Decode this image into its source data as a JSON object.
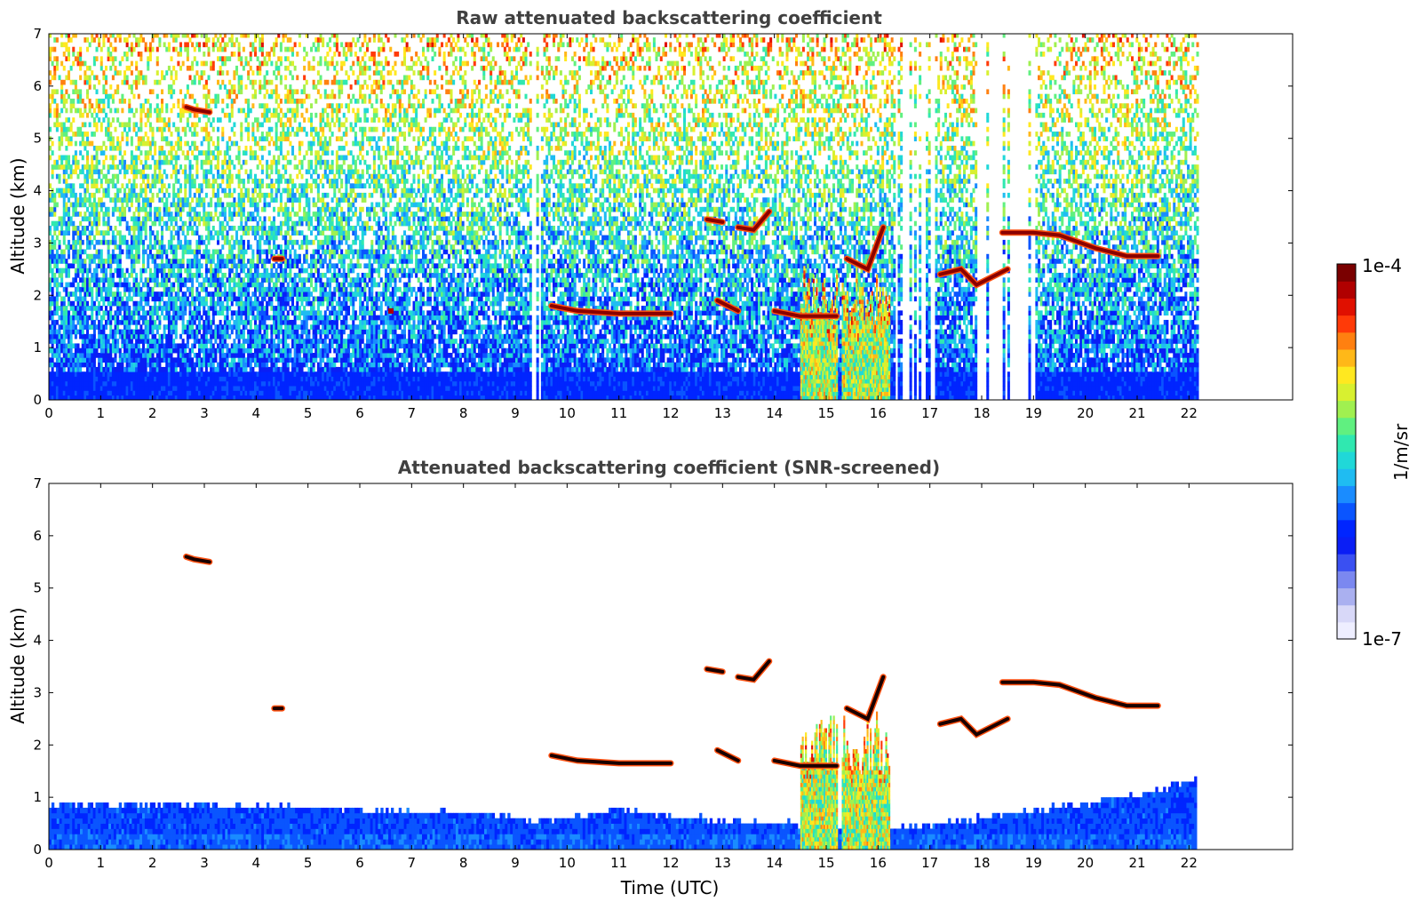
{
  "chart_data": [
    {
      "type": "heatmap",
      "title": "Raw attenuated backscattering coefficient",
      "xlabel": "",
      "ylabel": "Altitude (km)",
      "xlim": [
        0,
        24
      ],
      "ylim": [
        0,
        7
      ],
      "xticks": [
        "0",
        "1",
        "2",
        "3",
        "4",
        "5",
        "6",
        "7",
        "8",
        "9",
        "10",
        "11",
        "12",
        "13",
        "14",
        "15",
        "16",
        "17",
        "18",
        "19",
        "20",
        "21",
        "22"
      ],
      "yticks": [
        "0",
        "1",
        "2",
        "3",
        "4",
        "5",
        "6",
        "7"
      ],
      "data_end_hour": 22.15,
      "grid": false,
      "screened": false,
      "gaps": [
        [
          4.78,
          4.85
        ],
        [
          9.3,
          9.45
        ],
        [
          10.72,
          10.78
        ],
        [
          16.3,
          17.1
        ],
        [
          17.9,
          19.0
        ]
      ],
      "layers": [
        {
          "name": "",
          "points": [
            [
              2.65,
              5.6
            ],
            [
              2.8,
              5.55
            ],
            [
              3.1,
              5.5
            ]
          ]
        },
        {
          "name": "",
          "points": [
            [
              4.35,
              2.7
            ],
            [
              4.5,
              2.7
            ]
          ]
        },
        {
          "name": "",
          "points": [
            [
              6.6,
              1.7
            ]
          ]
        },
        {
          "name": "",
          "points": [
            [
              9.7,
              1.8
            ],
            [
              10.2,
              1.7
            ],
            [
              11.0,
              1.65
            ],
            [
              12.0,
              1.65
            ]
          ]
        },
        {
          "name": "",
          "points": [
            [
              12.7,
              3.45
            ],
            [
              13.0,
              3.4
            ]
          ]
        },
        {
          "name": "",
          "points": [
            [
              13.3,
              3.3
            ],
            [
              13.6,
              3.25
            ],
            [
              13.9,
              3.6
            ]
          ]
        },
        {
          "name": "",
          "points": [
            [
              12.9,
              1.9
            ],
            [
              13.3,
              1.7
            ]
          ]
        },
        {
          "name": "",
          "points": [
            [
              14.0,
              1.7
            ],
            [
              14.5,
              1.6
            ],
            [
              15.2,
              1.6
            ]
          ]
        },
        {
          "name": "",
          "points": [
            [
              15.4,
              2.7
            ],
            [
              15.8,
              2.5
            ],
            [
              16.1,
              3.3
            ]
          ]
        },
        {
          "name": "",
          "points": [
            [
              17.2,
              2.4
            ],
            [
              17.6,
              2.5
            ],
            [
              17.9,
              2.2
            ],
            [
              18.5,
              2.5
            ]
          ]
        },
        {
          "name": "",
          "points": [
            [
              18.4,
              3.2
            ],
            [
              19.0,
              3.2
            ],
            [
              19.5,
              3.15
            ],
            [
              20.2,
              2.9
            ],
            [
              20.8,
              2.75
            ],
            [
              21.4,
              2.75
            ]
          ]
        }
      ],
      "convective_cells": [
        [
          14.5,
          15.2
        ],
        [
          15.3,
          16.2
        ]
      ]
    },
    {
      "type": "heatmap",
      "title": "Attenuated backscattering coefficient (SNR-screened)",
      "xlabel": "Time (UTC)",
      "ylabel": "Altitude (km)",
      "xlim": [
        0,
        24
      ],
      "ylim": [
        0,
        7
      ],
      "xticks": [
        "0",
        "1",
        "2",
        "3",
        "4",
        "5",
        "6",
        "7",
        "8",
        "9",
        "10",
        "11",
        "12",
        "13",
        "14",
        "15",
        "16",
        "17",
        "18",
        "19",
        "20",
        "21",
        "22"
      ],
      "yticks": [
        "0",
        "1",
        "2",
        "3",
        "4",
        "5",
        "6",
        "7"
      ],
      "data_end_hour": 22.15,
      "grid": false,
      "screened": true,
      "boundary_layer_top": [
        [
          0,
          0.8
        ],
        [
          3,
          0.8
        ],
        [
          5,
          0.75
        ],
        [
          8,
          0.65
        ],
        [
          9.5,
          0.5
        ],
        [
          11,
          0.7
        ],
        [
          13,
          0.5
        ],
        [
          14.2,
          0.45
        ],
        [
          16,
          0.3
        ],
        [
          19,
          0.7
        ],
        [
          21,
          1.0
        ],
        [
          22.15,
          1.3
        ]
      ],
      "layers": [
        {
          "name": "",
          "points": [
            [
              2.65,
              5.6
            ],
            [
              2.8,
              5.55
            ],
            [
              3.1,
              5.5
            ]
          ]
        },
        {
          "name": "",
          "points": [
            [
              4.35,
              2.7
            ],
            [
              4.5,
              2.7
            ]
          ]
        },
        {
          "name": "",
          "points": [
            [
              9.7,
              1.8
            ],
            [
              10.2,
              1.7
            ],
            [
              11.0,
              1.65
            ],
            [
              12.0,
              1.65
            ]
          ]
        },
        {
          "name": "",
          "points": [
            [
              12.7,
              3.45
            ],
            [
              13.0,
              3.4
            ]
          ]
        },
        {
          "name": "",
          "points": [
            [
              13.3,
              3.3
            ],
            [
              13.6,
              3.25
            ],
            [
              13.9,
              3.6
            ]
          ]
        },
        {
          "name": "",
          "points": [
            [
              12.9,
              1.9
            ],
            [
              13.3,
              1.7
            ]
          ]
        },
        {
          "name": "",
          "points": [
            [
              14.0,
              1.7
            ],
            [
              14.5,
              1.6
            ],
            [
              15.2,
              1.6
            ]
          ]
        },
        {
          "name": "",
          "points": [
            [
              15.4,
              2.7
            ],
            [
              15.8,
              2.5
            ],
            [
              16.1,
              3.3
            ]
          ]
        },
        {
          "name": "",
          "points": [
            [
              17.2,
              2.4
            ],
            [
              17.6,
              2.5
            ],
            [
              17.9,
              2.2
            ],
            [
              18.5,
              2.5
            ]
          ]
        },
        {
          "name": "",
          "points": [
            [
              18.4,
              3.2
            ],
            [
              19.0,
              3.2
            ],
            [
              19.5,
              3.15
            ],
            [
              20.2,
              2.9
            ],
            [
              20.8,
              2.75
            ],
            [
              21.4,
              2.75
            ]
          ]
        }
      ],
      "convective_cells": [
        [
          14.5,
          15.2
        ],
        [
          15.3,
          16.2
        ]
      ]
    }
  ],
  "colorbar": {
    "label": "1/m/sr",
    "max_label": "1e-4",
    "min_label": "1e-7",
    "colors": [
      "#eeeeff",
      "#d8d8f8",
      "#aab0f0",
      "#7b88f0",
      "#3a50f2",
      "#0a1ef5",
      "#0025ff",
      "#0a55ff",
      "#1a8cff",
      "#1fbcf2",
      "#20d8d8",
      "#30e8b0",
      "#60f080",
      "#a0f050",
      "#d8f030",
      "#ffe820",
      "#ffb818",
      "#ff8010",
      "#ff3a08",
      "#e01000",
      "#b00000",
      "#7a0000"
    ]
  }
}
